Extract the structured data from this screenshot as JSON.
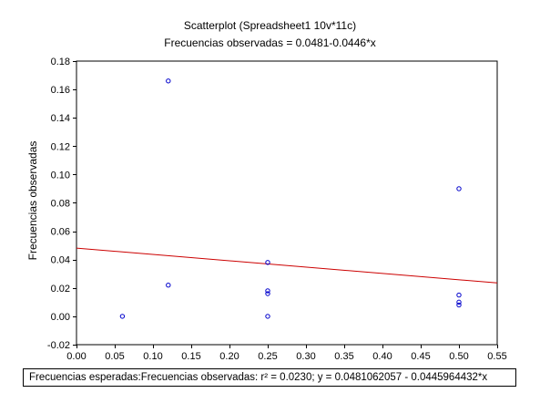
{
  "chart_data": {
    "type": "scatter",
    "title": "Scatterplot (Spreadsheet1 10v*11c)",
    "subtitle": "Frecuencias observadas = 0.0481-0.0446*x",
    "xlabel": "",
    "ylabel": "Frecuencias observadas",
    "xlim": [
      0.0,
      0.55
    ],
    "ylim": [
      -0.02,
      0.18
    ],
    "x_ticks": [
      "0.00",
      "0.05",
      "0.10",
      "0.15",
      "0.20",
      "0.25",
      "0.30",
      "0.35",
      "0.40",
      "0.45",
      "0.50",
      "0.55"
    ],
    "y_ticks": [
      "-0.02",
      "0.00",
      "0.02",
      "0.04",
      "0.06",
      "0.08",
      "0.10",
      "0.12",
      "0.14",
      "0.16",
      "0.18"
    ],
    "points": [
      {
        "x": 0.06,
        "y": 0.0
      },
      {
        "x": 0.12,
        "y": 0.166
      },
      {
        "x": 0.12,
        "y": 0.022
      },
      {
        "x": 0.25,
        "y": 0.038
      },
      {
        "x": 0.25,
        "y": 0.018
      },
      {
        "x": 0.25,
        "y": 0.016
      },
      {
        "x": 0.25,
        "y": 0.0
      },
      {
        "x": 0.5,
        "y": 0.09
      },
      {
        "x": 0.5,
        "y": 0.015
      },
      {
        "x": 0.5,
        "y": 0.01
      },
      {
        "x": 0.5,
        "y": 0.008
      }
    ],
    "regression": {
      "intercept": 0.0481,
      "slope": -0.0446
    },
    "grid": false,
    "colors": {
      "points": "#0000cc",
      "line": "#cc0000"
    }
  },
  "footer_text": "Frecuencias esperadas:Frecuencias observadas:  r² = 0.0230;  y  = 0.0481062057 - 0.0445964432*x"
}
